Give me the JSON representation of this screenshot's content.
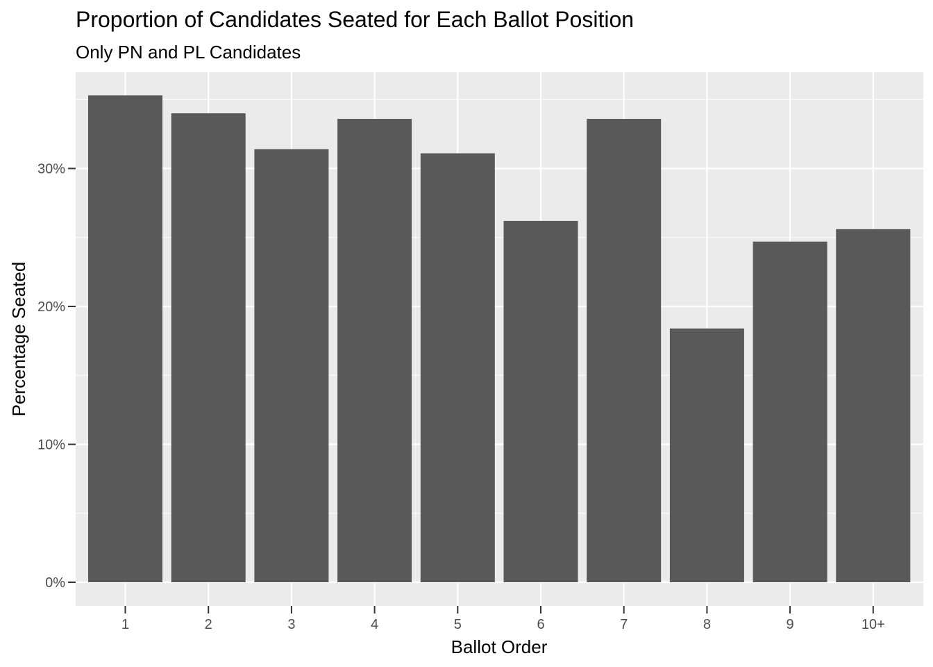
{
  "chart_data": {
    "type": "bar",
    "title": "Proportion of Candidates Seated for Each Ballot Position",
    "subtitle": "Only PN and PL Candidates",
    "xlabel": "Ballot Order",
    "ylabel": "Percentage Seated",
    "categories": [
      "1",
      "2",
      "3",
      "4",
      "5",
      "6",
      "7",
      "8",
      "9",
      "10+"
    ],
    "values": [
      35.3,
      34.0,
      31.4,
      33.6,
      31.1,
      26.2,
      33.6,
      18.4,
      24.7,
      25.6
    ],
    "ylim": [
      0,
      36
    ],
    "yticks": [
      0,
      10,
      20,
      30
    ],
    "ytick_labels": [
      "0%",
      "10%",
      "20%",
      "30%"
    ],
    "grid": true,
    "colors": {
      "panel": "#EBEBEB",
      "bar": "#595959",
      "grid": "#FFFFFF"
    }
  }
}
